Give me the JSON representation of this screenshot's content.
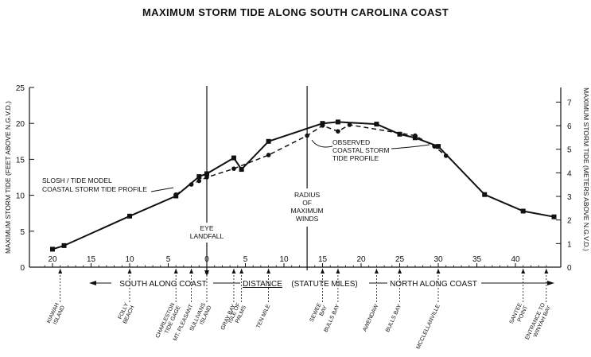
{
  "chart_data": {
    "type": "line",
    "title": "MAXIMUM STORM TIDE ALONG SOUTH CAROLINA COAST",
    "ylabel_left": "MAXIMUM STORM TIDE (FEET ABOVE N.G.V.D.)",
    "ylabel_right": "MAXIMUM STORM TIDE (METERS ABOVE N.G.V.D.)",
    "ylim_left": [
      0,
      25
    ],
    "ylim_right": [
      0,
      7.62
    ],
    "yticks_left": [
      0,
      5,
      10,
      15,
      20,
      25
    ],
    "yticks_right": [
      0,
      1,
      2,
      3,
      4,
      5,
      6,
      7
    ],
    "xlim": [
      -22,
      46
    ],
    "xticks": [
      {
        "x": -20,
        "label": "20"
      },
      {
        "x": -15,
        "label": "15"
      },
      {
        "x": -10,
        "label": "10"
      },
      {
        "x": -5,
        "label": "5"
      },
      {
        "x": 0,
        "label": "0"
      },
      {
        "x": 5,
        "label": "5"
      },
      {
        "x": 10,
        "label": "10"
      },
      {
        "x": 15,
        "label": "15"
      },
      {
        "x": 20,
        "label": "20"
      },
      {
        "x": 25,
        "label": "25"
      },
      {
        "x": 30,
        "label": "30"
      },
      {
        "x": 35,
        "label": "35"
      },
      {
        "x": 40,
        "label": "40"
      }
    ],
    "xaxis_south": "SOUTH ALONG COAST",
    "xlabel": "DISTANCE",
    "xaxis_units": "(STATUTE MILES)",
    "xaxis_north": "NORTH ALONG COAST",
    "series": [
      {
        "name": "SLOSH / TIDE MODEL COASTAL STORM TIDE PROFILE",
        "style": "solid",
        "marker": "square",
        "x": [
          -20,
          -18.5,
          -10,
          -4,
          -1,
          0,
          3.5,
          4.5,
          8,
          15,
          17,
          22,
          25,
          27,
          30,
          36,
          41,
          45
        ],
        "y": [
          2.5,
          3,
          7.1,
          9.9,
          12.6,
          13,
          15.2,
          13.6,
          17.5,
          20,
          20.2,
          19.9,
          18.5,
          18,
          16.8,
          10.1,
          7.8,
          7
        ]
      },
      {
        "name": "OBSERVED COASTAL STORM TIDE PROFILE",
        "style": "dashed",
        "marker": "dot",
        "x": [
          -4,
          -2,
          -1,
          0,
          3.5,
          8,
          13,
          15,
          17,
          18.5,
          27,
          29.5,
          31
        ],
        "y": [
          10.1,
          11.5,
          12,
          12.5,
          13.7,
          15.6,
          18.3,
          19.7,
          18.9,
          19.8,
          18.3,
          16.8,
          15.5
        ]
      }
    ],
    "markers": [
      {
        "x": 0,
        "label_lines": [
          "EYE",
          "LANDFALL"
        ]
      },
      {
        "x": 13,
        "label_lines": [
          "RADIUS",
          "OF",
          "MAXIMUM",
          "WINDS"
        ]
      }
    ],
    "annotations": [
      {
        "series": 0,
        "lines": [
          "SLOSH / TIDE MODEL",
          "COASTAL STORM TIDE PROFILE"
        ]
      },
      {
        "series": 1,
        "lines": [
          "OBSERVED",
          "COASTAL STORM",
          "TIDE PROFILE"
        ]
      }
    ],
    "locations": [
      {
        "x": -19,
        "label_lines": [
          "KIAWAH",
          "ISLAND"
        ]
      },
      {
        "x": -10,
        "label_lines": [
          "FOLLY",
          "BEACH"
        ]
      },
      {
        "x": -4,
        "label_lines": [
          "CHARLESTON",
          "TIDE GAGE"
        ]
      },
      {
        "x": -2,
        "label_lines": [
          "MT. PLEASANT"
        ]
      },
      {
        "x": 0,
        "label_lines": [
          "SULLIVANS",
          "ISLAND"
        ]
      },
      {
        "x": 3.5,
        "label_lines": [
          "GRAY BAY"
        ]
      },
      {
        "x": 4.5,
        "label_lines": [
          "ISLE OF",
          "PALMS"
        ]
      },
      {
        "x": 8,
        "label_lines": [
          "TEN MILE"
        ]
      },
      {
        "x": 15,
        "label_lines": [
          "SEWEE",
          "BAY"
        ]
      },
      {
        "x": 17,
        "label_lines": [
          "BULLS BAY"
        ]
      },
      {
        "x": 22,
        "label_lines": [
          "AWENDAW"
        ]
      },
      {
        "x": 25,
        "label_lines": [
          "BULLS BAY"
        ]
      },
      {
        "x": 30,
        "label_lines": [
          "MCCLELLANVILLE"
        ]
      },
      {
        "x": 41,
        "label_lines": [
          "SANTEE",
          "POINT"
        ]
      },
      {
        "x": 44,
        "label_lines": [
          "ENTRANCE TO",
          "WINYAH BAY"
        ]
      }
    ]
  }
}
